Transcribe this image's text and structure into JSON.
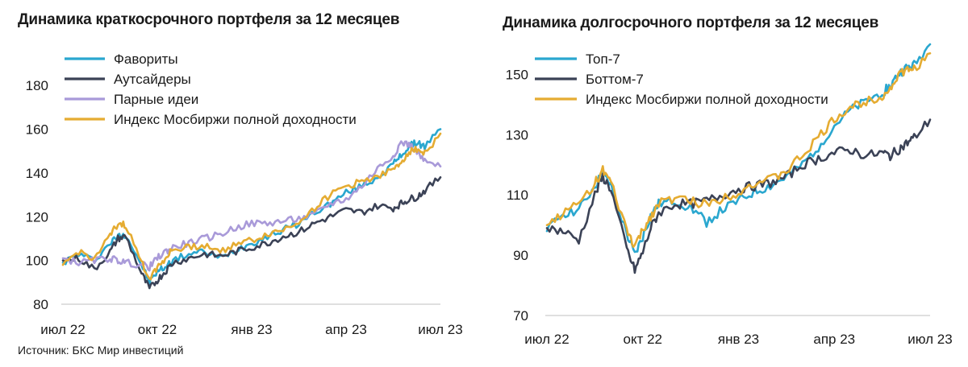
{
  "source": "Источник: БКС Мир инвестиций",
  "chart_data": [
    {
      "type": "line",
      "title": "Динамика краткосрочного портфеля за 12 месяцев",
      "xlabel": "",
      "ylabel": "",
      "x_ticks": [
        "июл 22",
        "окт 22",
        "янв 23",
        "апр 23",
        "июл 23"
      ],
      "x_tick_months": [
        0,
        3,
        6,
        9,
        12
      ],
      "xlim": [
        0,
        12
      ],
      "ylim": [
        80,
        190
      ],
      "y_ticks": [
        80,
        100,
        120,
        140,
        160,
        180
      ],
      "grid": false,
      "legend_position": "top-left",
      "x": [
        0,
        0.5,
        1,
        1.5,
        1.75,
        2,
        2.5,
        2.75,
        3,
        3.25,
        3.5,
        4,
        4.5,
        5,
        5.5,
        6,
        6.5,
        7,
        7.5,
        8,
        8.5,
        9,
        9.5,
        10,
        10.5,
        10.75,
        11,
        11.25,
        11.5,
        12
      ],
      "series": [
        {
          "name": "Фавориты",
          "color": "#2aa7cf",
          "values": [
            99,
            103,
            100,
            108,
            111,
            112,
            98,
            90,
            95,
            97,
            100,
            103,
            104,
            101,
            105,
            108,
            111,
            114,
            117,
            122,
            126,
            131,
            134,
            138,
            144,
            148,
            152,
            154,
            152,
            160
          ]
        },
        {
          "name": "Аутсайдеры",
          "color": "#3b4256",
          "values": [
            100,
            101,
            96,
            104,
            110,
            111,
            94,
            87,
            91,
            95,
            99,
            101,
            103,
            102,
            104,
            106,
            108,
            111,
            113,
            117,
            120,
            123,
            122,
            125,
            124,
            126,
            128,
            129,
            132,
            138
          ]
        },
        {
          "name": "Парные идеи",
          "color": "#a99ad9",
          "values": [
            101,
            99,
            100,
            101,
            100,
            99,
            98,
            97,
            101,
            104,
            106,
            108,
            110,
            112,
            115,
            117,
            117,
            118,
            119,
            121,
            126,
            128,
            134,
            142,
            148,
            154,
            153,
            150,
            145,
            143
          ]
        },
        {
          "name": "Индекс Мосбиржи полной доходности",
          "color": "#e5ac32",
          "values": [
            98,
            104,
            101,
            111,
            117,
            116,
            99,
            92,
            97,
            101,
            105,
            106,
            107,
            104,
            108,
            109,
            112,
            114,
            118,
            124,
            130,
            134,
            136,
            139,
            141,
            145,
            150,
            151,
            149,
            158
          ]
        }
      ]
    },
    {
      "type": "line",
      "title": "Динамика долгосрочного портфеля за 12 месяцев",
      "xlabel": "",
      "ylabel": "",
      "x_ticks": [
        "июл 22",
        "окт 22",
        "янв 23",
        "апр 23",
        "июл 23"
      ],
      "x_tick_months": [
        0,
        3,
        6,
        9,
        12
      ],
      "xlim": [
        0,
        12
      ],
      "ylim": [
        70,
        160
      ],
      "y_ticks": [
        70,
        90,
        110,
        130,
        150
      ],
      "grid": false,
      "legend_position": "top-left",
      "x": [
        0,
        0.5,
        1,
        1.5,
        1.75,
        2,
        2.5,
        2.75,
        3,
        3.25,
        3.5,
        4,
        4.5,
        5,
        5.5,
        6,
        6.5,
        7,
        7.5,
        8,
        8.5,
        9,
        9.5,
        10,
        10.5,
        10.75,
        11,
        11.25,
        11.5,
        12
      ],
      "series": [
        {
          "name": "Топ-7",
          "color": "#2aa7cf",
          "values": [
            98,
            104,
            105,
            113,
            117,
            113,
            97,
            90,
            96,
            103,
            107,
            108,
            106,
            101,
            105,
            108,
            111,
            113,
            116,
            120,
            126,
            133,
            138,
            141,
            144,
            146,
            150,
            152,
            153,
            160
          ]
        },
        {
          "name": "Боттом-7",
          "color": "#3b4256",
          "values": [
            99,
            98,
            95,
            110,
            116,
            112,
            92,
            85,
            91,
            99,
            104,
            107,
            107,
            108,
            110,
            112,
            113,
            114,
            116,
            120,
            122,
            124,
            125,
            123,
            124,
            123,
            125,
            127,
            129,
            135
          ]
        },
        {
          "name": "Индекс Мосбиржи полной доходности",
          "color": "#e5ac32",
          "values": [
            100,
            104,
            107,
            114,
            118,
            114,
            98,
            93,
            98,
            103,
            107,
            109,
            108,
            107,
            109,
            111,
            114,
            115,
            118,
            123,
            129,
            135,
            139,
            141,
            143,
            145,
            150,
            151,
            152,
            157
          ]
        }
      ]
    }
  ]
}
